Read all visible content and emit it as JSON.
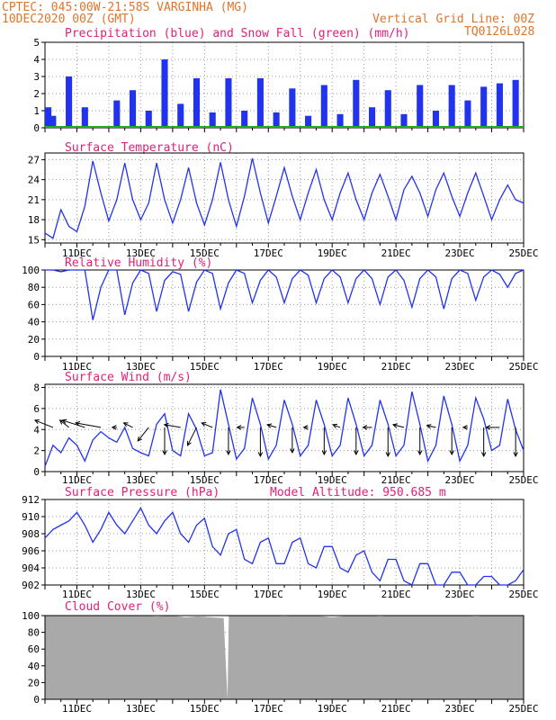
{
  "header": {
    "line1": "CPTEC:   045:00W-21:58S  VARGINHA (MG)",
    "line2": "10DEC2020 00Z (GMT)",
    "grid_note": "Vertical Grid Line: 00Z",
    "run_code": "TQ0126L028"
  },
  "model_altitude": "Model Altitude: 950.685 m",
  "x_axis": {
    "start_day": 10,
    "end_day": 25,
    "tick_days": [
      11,
      13,
      15,
      17,
      19,
      21,
      23,
      25
    ],
    "tick_labels": [
      "11DEC",
      "13DEC",
      "15DEC",
      "17DEC",
      "19DEC",
      "21DEC",
      "23DEC",
      "25DEC"
    ]
  },
  "colors": {
    "header": "#e0742a",
    "title": "#e0207a",
    "line": "#2233ee",
    "precip": "#2233ee",
    "snow": "#22aa22",
    "cloud": "#a9a9a9",
    "arrow": "#000000"
  },
  "chart_data": [
    {
      "id": "precip",
      "type": "bar",
      "title": "Precipitation (blue) and Snow Fall (green) (mm/h)",
      "ylim": [
        0,
        5
      ],
      "yticks": [
        0,
        1,
        2,
        3,
        4,
        5
      ],
      "series": [
        {
          "name": "Precipitation",
          "x": [
            10.1,
            10.25,
            10.75,
            11.25,
            11.75,
            12.25,
            12.75,
            13.25,
            13.75,
            14.25,
            14.75,
            15.25,
            15.75,
            16.25,
            16.75,
            17.25,
            17.75,
            18.25,
            18.75,
            19.25,
            19.75,
            20.25,
            20.75,
            21.25,
            21.75,
            22.25,
            22.75,
            23.25,
            23.75,
            24.25,
            24.75
          ],
          "values": [
            1.2,
            0.7,
            3.0,
            1.2,
            0.1,
            1.6,
            2.2,
            1.0,
            4.0,
            1.4,
            2.9,
            0.9,
            2.9,
            1.0,
            2.9,
            0.9,
            2.3,
            0.7,
            2.5,
            0.8,
            2.8,
            1.2,
            2.2,
            0.8,
            2.5,
            1.0,
            2.5,
            1.6,
            2.4,
            2.6,
            2.8
          ]
        },
        {
          "name": "Snow Fall",
          "x": [
            10.0,
            25.0
          ],
          "values": [
            0,
            0
          ]
        }
      ]
    },
    {
      "id": "temp",
      "type": "line",
      "title": "Surface Temperature (nC)",
      "ylim": [
        14.5,
        28
      ],
      "yticks": [
        15,
        18,
        21,
        24,
        27
      ],
      "x": [
        10.0,
        10.25,
        10.5,
        10.75,
        11.0,
        11.25,
        11.5,
        11.75,
        12.0,
        12.25,
        12.5,
        12.75,
        13.0,
        13.25,
        13.5,
        13.75,
        14.0,
        14.25,
        14.5,
        14.75,
        15.0,
        15.25,
        15.5,
        15.75,
        16.0,
        16.25,
        16.5,
        16.75,
        17.0,
        17.25,
        17.5,
        17.75,
        18.0,
        18.25,
        18.5,
        18.75,
        19.0,
        19.25,
        19.5,
        19.75,
        20.0,
        20.25,
        20.5,
        20.75,
        21.0,
        21.25,
        21.5,
        21.75,
        22.0,
        22.25,
        22.5,
        22.75,
        23.0,
        23.25,
        23.5,
        23.75,
        24.0,
        24.25,
        24.5,
        24.75,
        25.0
      ],
      "values": [
        16.0,
        15.2,
        19.5,
        17.0,
        16.2,
        20.0,
        26.8,
        22.0,
        17.8,
        21.0,
        26.5,
        21.0,
        18.0,
        20.5,
        26.5,
        21.0,
        17.5,
        21.0,
        25.8,
        20.5,
        17.2,
        21.0,
        26.6,
        21.0,
        17.0,
        21.5,
        27.2,
        22.0,
        17.5,
        21.5,
        25.8,
        21.5,
        18.0,
        22.0,
        25.5,
        21.0,
        18.0,
        22.0,
        25.0,
        21.0,
        18.0,
        22.0,
        24.8,
        21.5,
        18.0,
        22.5,
        24.5,
        22.0,
        18.5,
        22.5,
        25.0,
        21.5,
        18.5,
        22.0,
        25.0,
        21.5,
        18.0,
        21.0,
        23.2,
        21.0,
        20.5
      ]
    },
    {
      "id": "rh",
      "type": "line",
      "title": "Relative Humidity (%)",
      "ylim": [
        0,
        100
      ],
      "yticks": [
        0,
        20,
        40,
        60,
        80,
        100
      ],
      "x": [
        10.0,
        10.25,
        10.5,
        10.75,
        11.0,
        11.25,
        11.5,
        11.75,
        12.0,
        12.25,
        12.5,
        12.75,
        13.0,
        13.25,
        13.5,
        13.75,
        14.0,
        14.25,
        14.5,
        14.75,
        15.0,
        15.25,
        15.5,
        15.75,
        16.0,
        16.25,
        16.5,
        16.75,
        17.0,
        17.25,
        17.5,
        17.75,
        18.0,
        18.25,
        18.5,
        18.75,
        19.0,
        19.25,
        19.5,
        19.75,
        20.0,
        20.25,
        20.5,
        20.75,
        21.0,
        21.25,
        21.5,
        21.75,
        22.0,
        22.25,
        22.5,
        22.75,
        23.0,
        23.25,
        23.5,
        23.75,
        24.0,
        24.25,
        24.5,
        24.75,
        25.0
      ],
      "values": [
        100,
        100,
        98,
        100,
        100,
        100,
        42,
        80,
        100,
        100,
        48,
        85,
        100,
        96,
        52,
        88,
        98,
        95,
        52,
        86,
        100,
        96,
        55,
        85,
        100,
        96,
        62,
        88,
        100,
        92,
        62,
        90,
        100,
        94,
        62,
        90,
        100,
        92,
        62,
        90,
        100,
        90,
        60,
        92,
        100,
        88,
        57,
        90,
        100,
        92,
        55,
        90,
        100,
        96,
        65,
        92,
        100,
        95,
        80,
        96,
        100
      ]
    },
    {
      "id": "wind",
      "type": "line",
      "title": "Surface Wind (m/s)",
      "ylim": [
        0,
        8.3
      ],
      "yticks": [
        0,
        2,
        4,
        6,
        8
      ],
      "x": [
        10.0,
        10.25,
        10.5,
        10.75,
        11.0,
        11.25,
        11.5,
        11.75,
        12.0,
        12.25,
        12.5,
        12.75,
        13.0,
        13.25,
        13.5,
        13.75,
        14.0,
        14.25,
        14.5,
        14.75,
        15.0,
        15.25,
        15.5,
        15.75,
        16.0,
        16.25,
        16.5,
        16.75,
        17.0,
        17.25,
        17.5,
        17.75,
        18.0,
        18.25,
        18.5,
        18.75,
        19.0,
        19.25,
        19.5,
        19.75,
        20.0,
        20.25,
        20.5,
        20.75,
        21.0,
        21.25,
        21.5,
        21.75,
        22.0,
        22.25,
        22.5,
        22.75,
        23.0,
        23.25,
        23.5,
        23.75,
        24.0,
        24.25,
        24.5,
        24.75,
        25.0
      ],
      "values": [
        0.5,
        2.5,
        1.8,
        3.2,
        2.5,
        1.0,
        3.0,
        3.8,
        3.2,
        2.8,
        4.2,
        2.2,
        1.8,
        1.5,
        4.5,
        5.5,
        2.0,
        1.5,
        5.5,
        4.0,
        1.5,
        1.8,
        7.8,
        4.5,
        1.2,
        2.2,
        7.0,
        4.5,
        1.2,
        2.5,
        6.8,
        4.5,
        1.5,
        2.5,
        6.8,
        4.5,
        1.5,
        2.5,
        7.0,
        4.5,
        1.5,
        2.5,
        6.8,
        4.5,
        1.5,
        2.5,
        7.6,
        4.5,
        1.0,
        2.5,
        7.2,
        4.5,
        1.0,
        2.5,
        7.0,
        5.0,
        2.0,
        2.5,
        6.9,
        4.0,
        2.0
      ]
    },
    {
      "id": "wind_vectors",
      "type": "scatter",
      "day": [
        10.25,
        10.75,
        11.25,
        11.75,
        12.25,
        12.75,
        13.25,
        13.75,
        14.25,
        14.75,
        15.25,
        15.75,
        16.25,
        16.75,
        17.25,
        17.75,
        18.25,
        18.75,
        19.25,
        19.75,
        20.25,
        20.75,
        21.25,
        21.75,
        22.25,
        22.75,
        23.25,
        23.75,
        24.25,
        24.75
      ],
      "u": [
        -2.0,
        -1.0,
        -2.5,
        -2.8,
        -0.5,
        -1.0,
        -1.2,
        0.0,
        -1.8,
        -1.0,
        -1.2,
        0.0,
        -0.8,
        0.0,
        -1.0,
        0.0,
        -0.5,
        0.0,
        -0.8,
        0.0,
        -1.0,
        0.0,
        -1.2,
        0.0,
        -1.0,
        0.0,
        -0.5,
        0.0,
        -1.5,
        0.0
      ],
      "v": [
        0.8,
        0.8,
        0.8,
        0.5,
        0.0,
        0.5,
        -1.5,
        -3.0,
        0.3,
        -2.0,
        0.5,
        -3.0,
        0.0,
        -3.2,
        0.3,
        -2.8,
        0.0,
        -3.0,
        0.3,
        -3.0,
        0.0,
        -3.2,
        0.3,
        -3.0,
        0.2,
        -3.0,
        0.0,
        -3.2,
        0.0,
        -3.2
      ]
    },
    {
      "id": "pressure",
      "type": "line",
      "title": "Surface Pressure (hPa)",
      "ylim": [
        902,
        912
      ],
      "yticks": [
        902,
        904,
        906,
        908,
        910,
        912
      ],
      "x": [
        10.0,
        10.25,
        10.5,
        10.75,
        11.0,
        11.25,
        11.5,
        11.75,
        12.0,
        12.25,
        12.5,
        12.75,
        13.0,
        13.25,
        13.5,
        13.75,
        14.0,
        14.25,
        14.5,
        14.75,
        15.0,
        15.25,
        15.5,
        15.75,
        16.0,
        16.25,
        16.5,
        16.75,
        17.0,
        17.25,
        17.5,
        17.75,
        18.0,
        18.25,
        18.5,
        18.75,
        19.0,
        19.25,
        19.5,
        19.75,
        20.0,
        20.25,
        20.5,
        20.75,
        21.0,
        21.25,
        21.5,
        21.75,
        22.0,
        22.25,
        22.5,
        22.75,
        23.0,
        23.25,
        23.5,
        23.75,
        24.0,
        24.25,
        24.5,
        24.75,
        25.0
      ],
      "values": [
        907.5,
        908.5,
        909.0,
        909.5,
        910.5,
        909.0,
        907.0,
        908.5,
        910.5,
        909.0,
        908.0,
        909.5,
        911.0,
        909.0,
        908.0,
        909.5,
        910.5,
        908.0,
        907.0,
        909.0,
        909.8,
        906.5,
        905.5,
        908.0,
        908.5,
        905.0,
        904.5,
        907.0,
        907.5,
        904.5,
        904.5,
        907.0,
        907.5,
        904.5,
        904.0,
        906.5,
        906.5,
        904.0,
        903.5,
        905.5,
        906.0,
        903.5,
        902.5,
        905.0,
        905.0,
        902.5,
        902.0,
        904.5,
        904.5,
        901.8,
        901.8,
        903.5,
        903.5,
        901.8,
        901.5,
        903.0,
        903.0,
        901.8,
        901.5,
        902.5,
        903.8
      ]
    },
    {
      "id": "cloud",
      "type": "area",
      "title": "Cloud Cover (%)",
      "ylim": [
        0,
        100
      ],
      "yticks": [
        0,
        20,
        40,
        60,
        80,
        100
      ],
      "x": [
        10.0,
        13.0,
        13.5,
        14.0,
        14.4,
        14.8,
        15.2,
        15.6,
        15.72,
        15.76,
        15.8,
        16.5,
        17.0,
        17.5,
        18.0,
        18.5,
        19.0,
        19.5,
        20.0,
        20.5,
        21.0,
        21.5,
        22.0,
        22.5,
        23.0,
        23.5,
        24.0,
        24.5,
        25.0
      ],
      "values": [
        100,
        100,
        99,
        100,
        98,
        99,
        98,
        97,
        0,
        100,
        100,
        100,
        100,
        99,
        100,
        100,
        98,
        100,
        100,
        99,
        100,
        100,
        100,
        100,
        100,
        99,
        100,
        100,
        100
      ]
    }
  ]
}
